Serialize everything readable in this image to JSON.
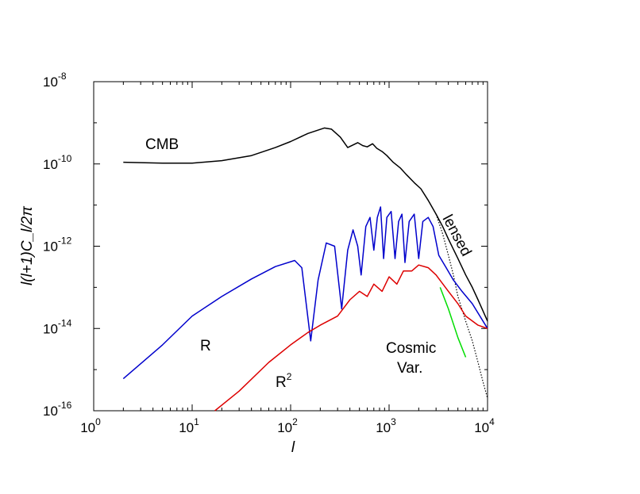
{
  "chart_data": {
    "type": "line",
    "xlabel": "l",
    "ylabel": "l(l+1)C_l/2π",
    "xscale": "log",
    "yscale": "log",
    "xlim": [
      1,
      10000
    ],
    "ylim": [
      1e-16,
      1e-08
    ],
    "grid": false,
    "x_ticks": [
      {
        "base": "10",
        "exp": "0"
      },
      {
        "base": "10",
        "exp": "1"
      },
      {
        "base": "10",
        "exp": "2"
      },
      {
        "base": "10",
        "exp": "3"
      },
      {
        "base": "10",
        "exp": "4"
      }
    ],
    "y_ticks": [
      {
        "base": "10",
        "exp": "-16"
      },
      {
        "base": "10",
        "exp": "-14"
      },
      {
        "base": "10",
        "exp": "-12"
      },
      {
        "base": "10",
        "exp": "-10"
      },
      {
        "base": "10",
        "exp": "-8"
      }
    ],
    "annotations": {
      "cmb": "CMB",
      "lensed": "lensed",
      "r": "R",
      "r2_base": "R",
      "r2_exp": "2",
      "cosmic1": "Cosmic",
      "cosmic2": "Var."
    },
    "series": [
      {
        "color": "#000000",
        "style": "solid",
        "points": [
          [
            2,
            1.1e-10
          ],
          [
            5,
            1.05e-10
          ],
          [
            10,
            1.05e-10
          ],
          [
            20,
            1.2e-10
          ],
          [
            40,
            1.6e-10
          ],
          [
            70,
            2.5e-10
          ],
          [
            100,
            3.5e-10
          ],
          [
            150,
            5.5e-10
          ],
          [
            220,
            7.5e-10
          ],
          [
            260,
            7e-10
          ],
          [
            320,
            4.5e-10
          ],
          [
            380,
            2.5e-10
          ],
          [
            430,
            2.9e-10
          ],
          [
            480,
            3.3e-10
          ],
          [
            540,
            2.8e-10
          ],
          [
            600,
            2.6e-10
          ],
          [
            680,
            3.1e-10
          ],
          [
            750,
            2.4e-10
          ],
          [
            850,
            2e-10
          ],
          [
            950,
            1.6e-10
          ],
          [
            1100,
            1.1e-10
          ],
          [
            1300,
            8e-11
          ],
          [
            1500,
            5.5e-11
          ],
          [
            1800,
            3.5e-11
          ],
          [
            2100,
            2.5e-11
          ],
          [
            2500,
            1.3e-11
          ],
          [
            3000,
            6e-12
          ],
          [
            3500,
            3e-12
          ],
          [
            4000,
            1.5e-12
          ],
          [
            5000,
            5e-13
          ],
          [
            6000,
            2e-13
          ],
          [
            7000,
            1e-13
          ],
          [
            8000,
            5e-14
          ],
          [
            10000,
            1.5e-14
          ]
        ]
      },
      {
        "color": "#000000",
        "style": "dotted",
        "points": [
          [
            3000,
            6e-12
          ],
          [
            3500,
            2e-12
          ],
          [
            4000,
            6e-13
          ],
          [
            4500,
            2e-13
          ],
          [
            5000,
            6e-14
          ],
          [
            6000,
            1.5e-14
          ],
          [
            7000,
            5e-15
          ],
          [
            8000,
            1.5e-15
          ],
          [
            9000,
            5e-16
          ],
          [
            10000,
            2e-16
          ]
        ]
      },
      {
        "color": "#0000cc",
        "style": "solid",
        "points": [
          [
            2,
            6e-16
          ],
          [
            5,
            4e-15
          ],
          [
            10,
            2e-14
          ],
          [
            20,
            6e-14
          ],
          [
            40,
            1.6e-13
          ],
          [
            70,
            3.2e-13
          ],
          [
            110,
            4.5e-13
          ],
          [
            130,
            3e-13
          ],
          [
            160,
            5e-15
          ],
          [
            190,
            1.5e-13
          ],
          [
            230,
            1.2e-12
          ],
          [
            280,
            1e-12
          ],
          [
            330,
            3e-14
          ],
          [
            380,
            8e-13
          ],
          [
            430,
            2.5e-12
          ],
          [
            480,
            1e-12
          ],
          [
            520,
            2e-13
          ],
          [
            580,
            3e-12
          ],
          [
            640,
            5e-12
          ],
          [
            700,
            8e-13
          ],
          [
            760,
            5e-12
          ],
          [
            820,
            9e-12
          ],
          [
            880,
            5e-13
          ],
          [
            950,
            5e-12
          ],
          [
            1050,
            7e-12
          ],
          [
            1150,
            5e-13
          ],
          [
            1250,
            4e-12
          ],
          [
            1350,
            6e-12
          ],
          [
            1450,
            4e-13
          ],
          [
            1600,
            4e-12
          ],
          [
            1800,
            6e-12
          ],
          [
            2000,
            5e-13
          ],
          [
            2200,
            4e-12
          ],
          [
            2500,
            5e-12
          ],
          [
            2800,
            3e-12
          ],
          [
            3200,
            6e-13
          ],
          [
            3800,
            3e-13
          ],
          [
            4500,
            1.5e-13
          ],
          [
            5500,
            8e-14
          ],
          [
            7000,
            4e-14
          ],
          [
            10000,
            1e-14
          ]
        ]
      },
      {
        "color": "#dd0000",
        "style": "solid",
        "points": [
          [
            17,
            1e-16
          ],
          [
            30,
            3e-16
          ],
          [
            60,
            1.5e-15
          ],
          [
            100,
            4e-15
          ],
          [
            150,
            8e-15
          ],
          [
            200,
            1.2e-14
          ],
          [
            300,
            2e-14
          ],
          [
            400,
            5e-14
          ],
          [
            500,
            8e-14
          ],
          [
            600,
            6e-14
          ],
          [
            700,
            1.2e-13
          ],
          [
            850,
            8e-14
          ],
          [
            1000,
            1.8e-13
          ],
          [
            1200,
            1.2e-13
          ],
          [
            1400,
            2.5e-13
          ],
          [
            1700,
            2.5e-13
          ],
          [
            2000,
            3.5e-13
          ],
          [
            2500,
            3e-13
          ],
          [
            3000,
            2e-13
          ],
          [
            4000,
            8e-14
          ],
          [
            5000,
            4e-14
          ],
          [
            6000,
            2e-14
          ],
          [
            8000,
            1.2e-14
          ],
          [
            10000,
            1e-14
          ]
        ]
      },
      {
        "color": "#00dd00",
        "style": "solid",
        "points": [
          [
            3300,
            1e-13
          ],
          [
            4000,
            3e-14
          ],
          [
            5000,
            6e-15
          ],
          [
            6000,
            2e-15
          ]
        ]
      }
    ]
  }
}
